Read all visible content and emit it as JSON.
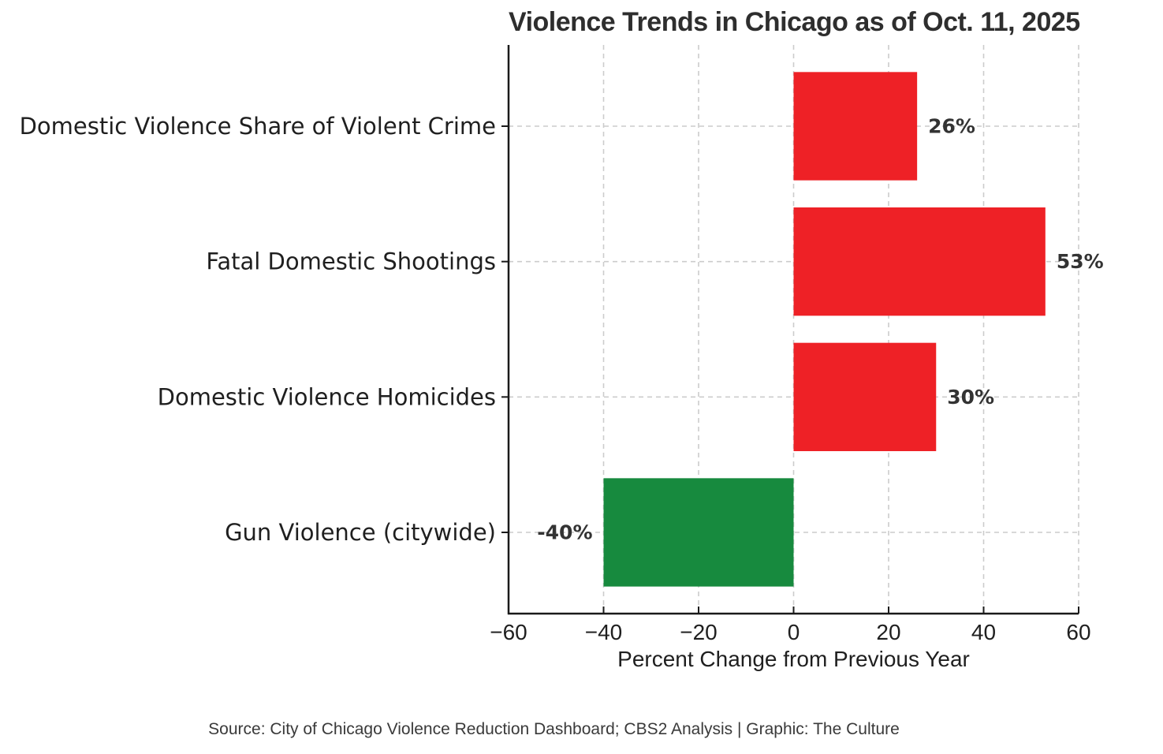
{
  "chart_data": {
    "type": "bar",
    "orientation": "horizontal",
    "title": "Violence Trends in Chicago as of Oct. 11, 2025",
    "categories": [
      "Domestic Violence Share of Violent Crime",
      "Fatal Domestic Shootings",
      "Domestic Violence Homicides",
      "Gun Violence (citywide)"
    ],
    "values": [
      26,
      53,
      30,
      -40
    ],
    "value_labels": [
      "26%",
      "53%",
      "30%",
      "-40%"
    ],
    "bar_colors": [
      "#ee2126",
      "#ee2126",
      "#ee2126",
      "#178a3e"
    ],
    "positive_color": "#ee2126",
    "negative_color": "#178a3e",
    "xlabel": "Percent Change from Previous Year",
    "xlim": [
      -60,
      60
    ],
    "xticks": [
      -60,
      -40,
      -20,
      0,
      20,
      40,
      60
    ],
    "xtick_labels": [
      "−60",
      "−40",
      "−20",
      "0",
      "20",
      "40",
      "60"
    ],
    "grid": {
      "show": true,
      "style": "dashed",
      "color": "#cccccc"
    },
    "legend": {
      "show": false
    },
    "source_note": "Source: City of Chicago Violence Reduction Dashboard; CBS2 Analysis | Graphic: The Culture"
  }
}
